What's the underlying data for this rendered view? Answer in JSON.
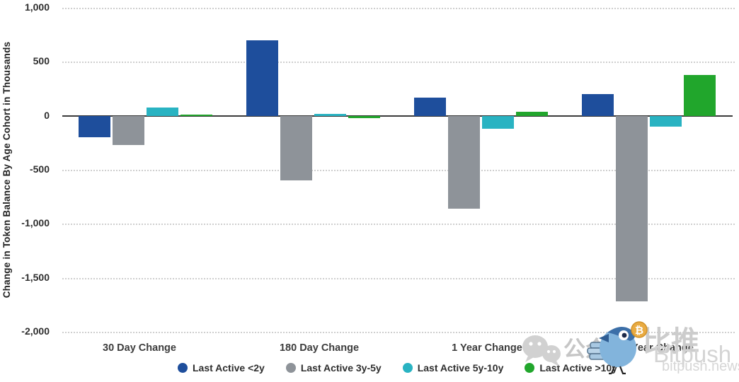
{
  "chart_data": {
    "type": "bar",
    "title": "",
    "ylabel": "Change in Token Balance By Age Cohort in Thousands",
    "xlabel": "",
    "categories": [
      "30 Day Change",
      "180 Day Change",
      "1 Year Change",
      "2 Year Change"
    ],
    "series": [
      {
        "name": "Last Active <2y",
        "color": "#1e4e9c",
        "values": [
          -200,
          700,
          170,
          200
        ]
      },
      {
        "name": "Last Active 3y-5y",
        "color": "#8e9399",
        "values": [
          -270,
          -600,
          -860,
          -1720
        ]
      },
      {
        "name": "Last Active 5y-10y",
        "color": "#29b3c2",
        "values": [
          75,
          20,
          -120,
          -100
        ]
      },
      {
        "name": "Last Active >10y",
        "color": "#21a62c",
        "values": [
          5,
          -20,
          35,
          380
        ]
      }
    ],
    "y_ticks": [
      "1,000",
      "500",
      "0",
      "-500",
      "-1,000",
      "-1,500",
      "-2,000"
    ],
    "y_tick_values": [
      1000,
      500,
      0,
      -500,
      -1000,
      -1500,
      -2000
    ],
    "ylim": [
      -2000,
      1000
    ],
    "grid": "horizontal-dotted",
    "legend_position": "bottom",
    "colors": {
      "axis_line": "#3b3b3b",
      "gridline": "#cfcfcf",
      "background": "#ffffff"
    }
  },
  "watermark": {
    "wechat_label": "公众号",
    "brand_cn": "比推",
    "brand_en": "Bitpush",
    "site": "bitpush.news",
    "coin_symbol": "₿"
  }
}
